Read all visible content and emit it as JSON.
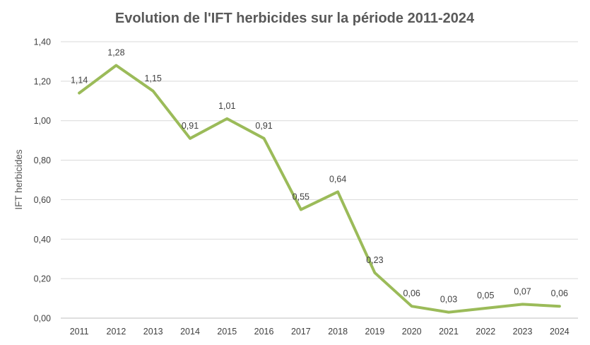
{
  "chart_data": {
    "type": "line",
    "title": "Evolution de l'IFT herbicides sur la période 2011-2024",
    "xlabel": "",
    "ylabel": "IFT herbicides",
    "categories": [
      "2011",
      "2012",
      "2013",
      "2014",
      "2015",
      "2016",
      "2017",
      "2018",
      "2019",
      "2020",
      "2021",
      "2022",
      "2023",
      "2024"
    ],
    "values": [
      1.14,
      1.28,
      1.15,
      0.91,
      1.01,
      0.91,
      0.55,
      0.64,
      0.23,
      0.06,
      0.03,
      0.05,
      0.07,
      0.06
    ],
    "data_labels": [
      "1,14",
      "1,28",
      "1,15",
      "0,91",
      "1,01",
      "0,91",
      "0,55",
      "0,64",
      "0,23",
      "0,06",
      "0,03",
      "0,05",
      "0,07",
      "0,06"
    ],
    "ylim": [
      0,
      1.4
    ],
    "y_ticks": [
      0,
      0.2,
      0.4,
      0.6,
      0.8,
      1.0,
      1.2,
      1.4
    ],
    "y_tick_labels": [
      "0,00",
      "0,20",
      "0,40",
      "0,60",
      "0,80",
      "1,00",
      "1,20",
      "1,40"
    ],
    "grid": true,
    "legend": "none",
    "line_color": "#9bbb59"
  }
}
